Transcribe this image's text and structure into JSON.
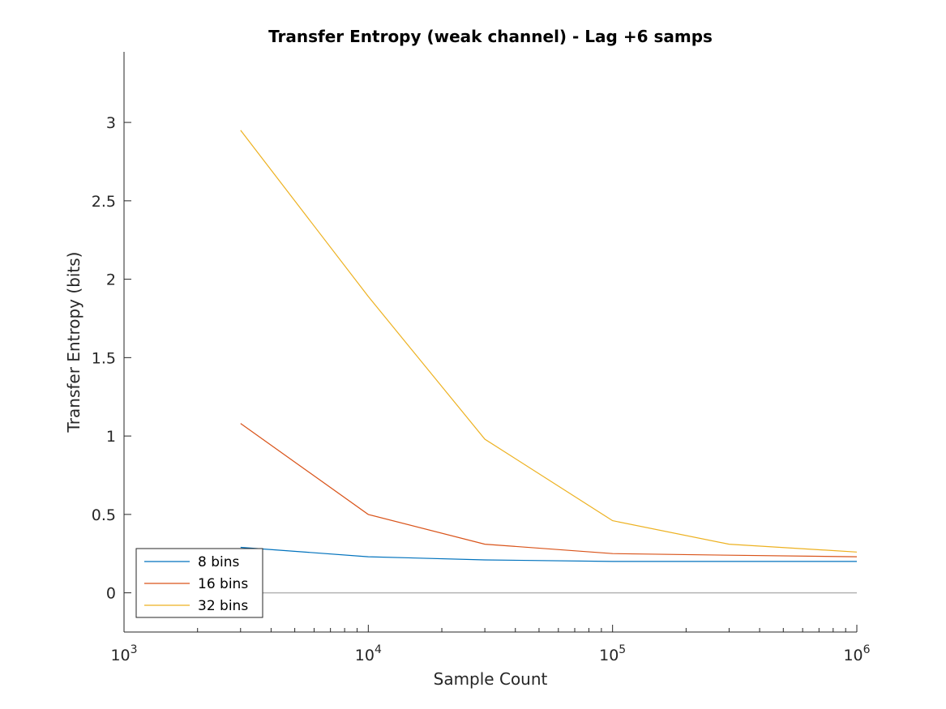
{
  "chart_data": {
    "type": "line",
    "title": "Transfer Entropy (weak channel) - Lag +6 samps",
    "xlabel": "Sample Count",
    "ylabel": "Transfer Entropy (bits)",
    "xscale": "log",
    "xlim": [
      1000,
      1000000
    ],
    "ylim": [
      -0.25,
      3.45
    ],
    "xticks": [
      {
        "base": "10",
        "exp": "3"
      },
      {
        "base": "10",
        "exp": "4"
      },
      {
        "base": "10",
        "exp": "5"
      },
      {
        "base": "10",
        "exp": "6"
      }
    ],
    "yticks": [
      "0",
      "0.5",
      "1",
      "1.5",
      "2",
      "2.5",
      "3"
    ],
    "x": [
      3000,
      10000,
      30000,
      100000,
      300000,
      1000000
    ],
    "series": [
      {
        "name": "8 bins",
        "color": "#0072BD",
        "values": [
          0.29,
          0.23,
          0.21,
          0.2,
          0.2,
          0.2
        ]
      },
      {
        "name": "16 bins",
        "color": "#D95319",
        "values": [
          1.08,
          0.5,
          0.31,
          0.25,
          0.24,
          0.23
        ]
      },
      {
        "name": "32 bins",
        "color": "#EDB120",
        "values": [
          2.95,
          1.89,
          0.98,
          0.46,
          0.31,
          0.26
        ]
      }
    ],
    "zero_line": {
      "value": 0,
      "color": "#B3B3B3"
    },
    "grid": false,
    "legend_position": "bottom-left"
  }
}
